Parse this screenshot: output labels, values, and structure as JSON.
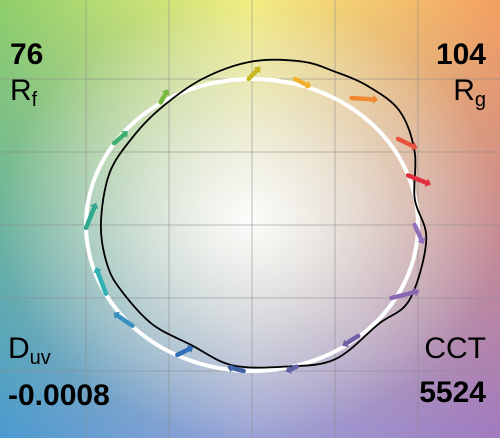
{
  "chart_data": {
    "type": "scatter",
    "title": "",
    "metrics": {
      "rf_label": "R",
      "rf_sub": "f",
      "rf_value": "76",
      "rg_label": "R",
      "rg_sub": "g",
      "rg_value": "104",
      "duv_label": "D",
      "duv_sub": "uv",
      "duv_value": "-0.0008",
      "cct_label": "CCT",
      "cct_value": "5524"
    },
    "axes": {
      "x_range": [
        -1.45,
        1.45
      ],
      "y_range": [
        -1.45,
        1.45
      ],
      "grid_step": 0.5,
      "grid": true
    },
    "reference_circle": {
      "radius": 1.0,
      "color": "#ffffff"
    },
    "test_contour": {
      "color": "#000000",
      "points": [
        [
          0.5,
          1.05
        ],
        [
          0.3,
          1.12
        ],
        [
          0.0,
          1.12
        ],
        [
          -0.3,
          1.0
        ],
        [
          -0.55,
          0.8
        ],
        [
          -0.72,
          0.6
        ],
        [
          -0.86,
          0.35
        ],
        [
          -0.91,
          0.0
        ],
        [
          -0.87,
          -0.28
        ],
        [
          -0.78,
          -0.46
        ],
        [
          -0.6,
          -0.68
        ],
        [
          -0.37,
          -0.82
        ],
        [
          -0.12,
          -0.96
        ],
        [
          0.2,
          -0.97
        ],
        [
          0.5,
          -0.92
        ],
        [
          0.76,
          -0.68
        ],
        [
          0.95,
          -0.51
        ],
        [
          1.05,
          -0.1
        ],
        [
          0.98,
          0.18
        ],
        [
          0.98,
          0.5
        ],
        [
          0.89,
          0.78
        ],
        [
          0.7,
          0.95
        ],
        [
          0.5,
          1.05
        ]
      ]
    },
    "hue_vectors": [
      {
        "from": [
          -0.02,
          1.0
        ],
        "to": [
          0.03,
          1.06
        ],
        "color": "#c8b820"
      },
      {
        "from": [
          0.26,
          1.0
        ],
        "to": [
          0.33,
          0.96
        ],
        "color": "#f0b030"
      },
      {
        "from": [
          0.6,
          0.87
        ],
        "to": [
          0.73,
          0.86
        ],
        "color": "#f08830"
      },
      {
        "from": [
          0.88,
          0.59
        ],
        "to": [
          0.97,
          0.54
        ],
        "color": "#e85040"
      },
      {
        "from": [
          0.94,
          0.34
        ],
        "to": [
          1.05,
          0.29
        ],
        "color": "#e03040"
      },
      {
        "from": [
          0.98,
          0.0
        ],
        "to": [
          1.02,
          -0.1
        ],
        "color": "#9070b8"
      },
      {
        "from": [
          0.84,
          -0.5
        ],
        "to": [
          0.98,
          -0.46
        ],
        "color": "#8868b0"
      },
      {
        "from": [
          0.64,
          -0.76
        ],
        "to": [
          0.57,
          -0.81
        ],
        "color": "#7060a8"
      },
      {
        "from": [
          0.27,
          -0.97
        ],
        "to": [
          0.23,
          -0.99
        ],
        "color": "#6060a8"
      },
      {
        "from": [
          -0.05,
          -1.0
        ],
        "to": [
          -0.12,
          -0.98
        ],
        "color": "#4060a8"
      },
      {
        "from": [
          -0.45,
          -0.89
        ],
        "to": [
          -0.38,
          -0.85
        ],
        "color": "#3070b8"
      },
      {
        "from": [
          -0.72,
          -0.69
        ],
        "to": [
          -0.81,
          -0.62
        ],
        "color": "#3890c0"
      },
      {
        "from": [
          -0.88,
          -0.47
        ],
        "to": [
          -0.93,
          -0.32
        ],
        "color": "#30b0b0"
      },
      {
        "from": [
          -1.0,
          -0.02
        ],
        "to": [
          -0.95,
          0.12
        ],
        "color": "#30a890"
      },
      {
        "from": [
          -0.83,
          0.56
        ],
        "to": [
          -0.77,
          0.62
        ],
        "color": "#40b070"
      },
      {
        "from": [
          -0.55,
          0.84
        ],
        "to": [
          -0.52,
          0.9
        ],
        "color": "#78b840"
      }
    ]
  }
}
